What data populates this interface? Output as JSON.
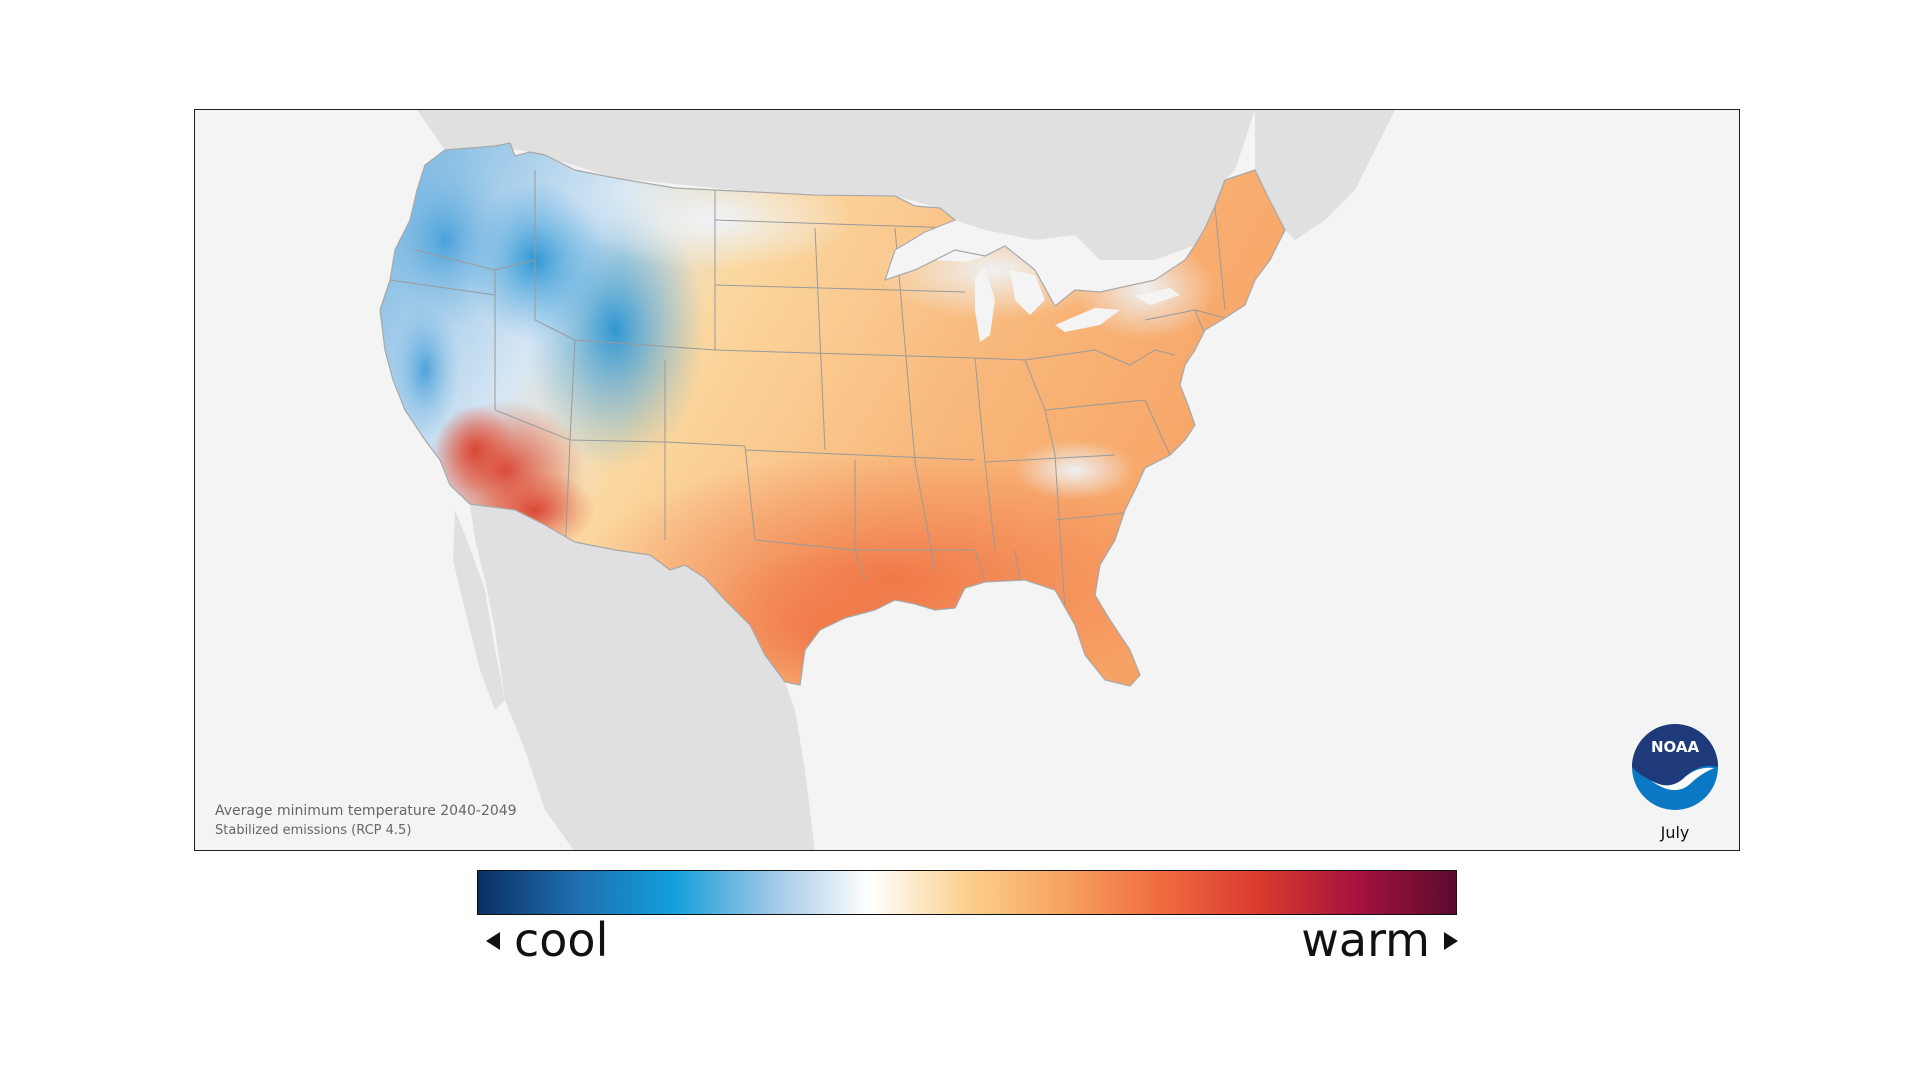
{
  "map": {
    "caption_title": "Average minimum temperature 2040-2049",
    "caption_subtitle": "Stabilized emissions (RCP 4.5)",
    "month": "July",
    "logo_text": "NOAA",
    "background_land_color": "#e0e0e0",
    "ocean_color": "#f4f4f4",
    "border_color": "#9a9a9a"
  },
  "legend": {
    "cool_label": "cool",
    "warm_label": "warm",
    "gradient_stops": [
      "#0b2f63",
      "#1f6fb0",
      "#129fdb",
      "#9fc7e6",
      "#ffffff",
      "#fbd08d",
      "#f6a35e",
      "#f06a3f",
      "#d93a2f",
      "#a5123d",
      "#5c0a2e"
    ]
  },
  "noaa_logo": {
    "top_color": "#1e3a7b",
    "bottom_color": "#0b78c4"
  }
}
